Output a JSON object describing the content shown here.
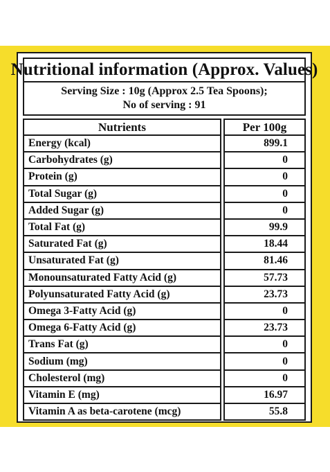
{
  "title": "Nutritional information (Approx. Values)",
  "serving": {
    "line1": "Serving Size : 10g (Approx 2.5 Tea Spoons);",
    "line2": "No of serving : 91"
  },
  "headers": {
    "nutrients": "Nutrients",
    "per100g": "Per 100g"
  },
  "rows": [
    {
      "name": "Energy (kcal)",
      "value": "899.1"
    },
    {
      "name": "Carbohydrates (g)",
      "value": "0"
    },
    {
      "name": "Protein (g)",
      "value": "0"
    },
    {
      "name": "Total Sugar (g)",
      "value": "0"
    },
    {
      "name": "Added Sugar (g)",
      "value": "0"
    },
    {
      "name": "Total Fat (g)",
      "value": "99.9"
    },
    {
      "name": "Saturated Fat (g)",
      "value": "18.44"
    },
    {
      "name": "Unsaturated Fat (g)",
      "value": "81.46"
    },
    {
      "name": "Monounsaturated Fatty Acid (g)",
      "value": "57.73"
    },
    {
      "name": "Polyunsaturated Fatty Acid (g)",
      "value": "23.73"
    },
    {
      "name": "Omega 3-Fatty Acid (g)",
      "value": "0"
    },
    {
      "name": "Omega 6-Fatty Acid (g)",
      "value": "23.73"
    },
    {
      "name": "Trans Fat (g)",
      "value": "0"
    },
    {
      "name": "Sodium (mg)",
      "value": "0"
    },
    {
      "name": "Cholesterol (mg)",
      "value": "0"
    },
    {
      "name": "Vitamin E (mg)",
      "value": "16.97"
    },
    {
      "name": "Vitamin A as beta-carotene (mcg)",
      "value": "55.8"
    }
  ],
  "colors": {
    "background_band": "#f6dd2b",
    "border": "#1a1a1a"
  }
}
